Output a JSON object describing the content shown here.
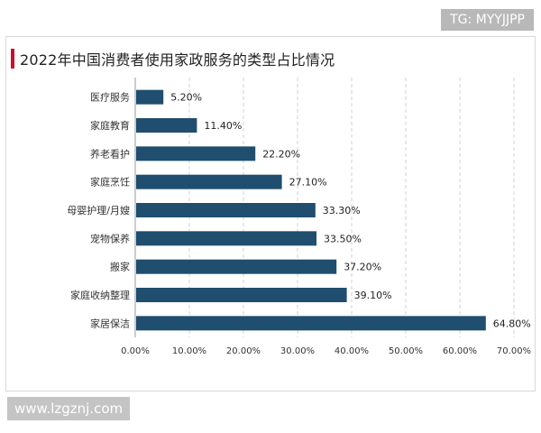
{
  "watermark_top": "TG: MYYJJPP",
  "watermark_bottom": "www.lzgznj.com",
  "chart_data": {
    "type": "bar",
    "orientation": "horizontal",
    "title": "2022年中国消费者使用家政服务的类型占比情况",
    "categories": [
      "医疗服务",
      "家庭教育",
      "养老看护",
      "家庭烹饪",
      "母婴护理/月嫂",
      "宠物保养",
      "搬家",
      "家庭收纳整理",
      "家居保洁"
    ],
    "values": [
      5.2,
      11.4,
      22.2,
      27.1,
      33.3,
      33.5,
      37.2,
      39.1,
      64.8
    ],
    "value_labels": [
      "5.20%",
      "11.40%",
      "22.20%",
      "27.10%",
      "33.30%",
      "33.50%",
      "37.20%",
      "39.10%",
      "64.80%"
    ],
    "xlim": [
      0,
      70
    ],
    "xticks": [
      "0.00%",
      "10.00%",
      "20.00%",
      "30.00%",
      "40.00%",
      "50.00%",
      "60.00%",
      "70.00%"
    ],
    "xlabel": "",
    "ylabel": "",
    "grid": true,
    "bar_color": "#1f4e6e",
    "grid_color": "#d0d0d0"
  }
}
